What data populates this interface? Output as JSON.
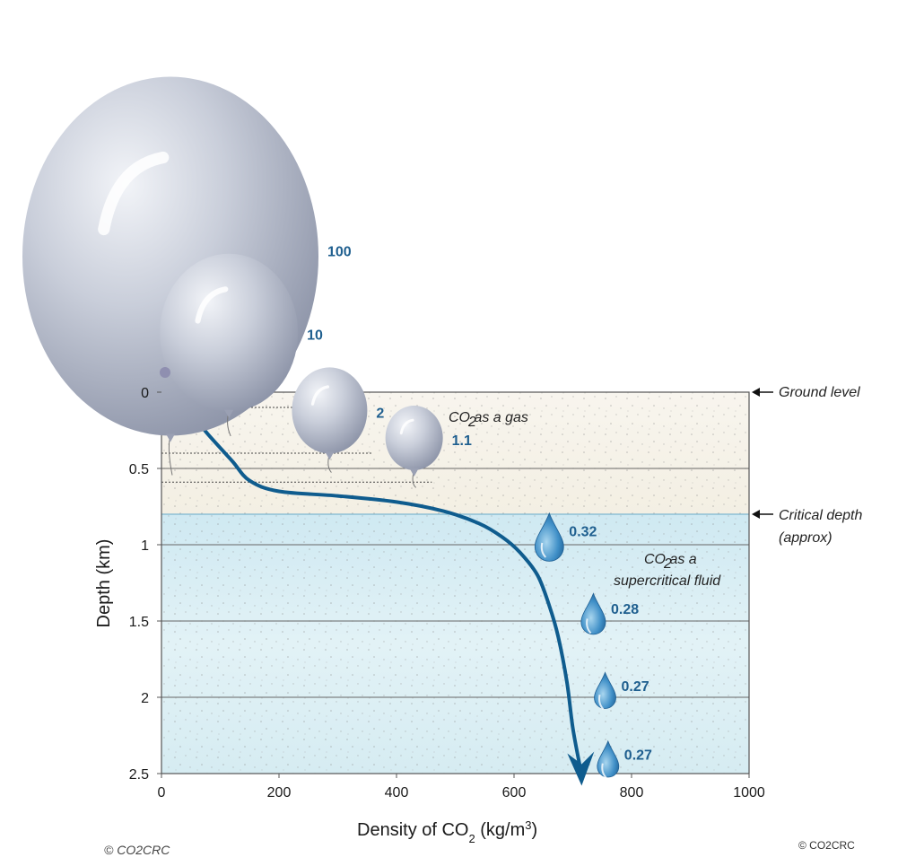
{
  "chart_data": {
    "type": "line",
    "xlabel": "Density of CO",
    "xlabel_sub": "2",
    "xlabel_unit": " (kg/m",
    "xlabel_sup": "3",
    "xlabel_end": ")",
    "ylabel": "Depth (km)",
    "xlim": [
      0,
      1000
    ],
    "ylim": [
      0,
      2.5
    ],
    "x_ticks": [
      0,
      200,
      400,
      600,
      800,
      1000
    ],
    "y_ticks": [
      0,
      0.5,
      1,
      1.5,
      2,
      2.5
    ],
    "series": [
      {
        "x": [
          0,
          40,
          80,
          120,
          150,
          200,
          300,
          400,
          480,
          540,
          580,
          610,
          640,
          660,
          675,
          690,
          700,
          712
        ],
        "y": [
          0,
          0.1,
          0.28,
          0.45,
          0.58,
          0.65,
          0.68,
          0.72,
          0.78,
          0.86,
          0.95,
          1.05,
          1.2,
          1.4,
          1.6,
          1.9,
          2.2,
          2.45
        ]
      }
    ],
    "critical_depth": 0.8,
    "ground_level": 0,
    "zones": {
      "gas": "CO as a gas",
      "supercritical_line1": "CO as a",
      "supercritical_line2": "supercritical fluid"
    },
    "gas_volumes": [
      {
        "label": "100",
        "depth": -0.95,
        "density": 0
      },
      {
        "label": "10",
        "depth": -0.39,
        "density": 130
      },
      {
        "label": "2",
        "depth": 0.12,
        "density": 280
      },
      {
        "label": "1.1",
        "depth": 0.3,
        "density": 430
      }
    ],
    "fluid_volumes": [
      {
        "label": "0.32",
        "depth": 0.97,
        "density": 660
      },
      {
        "label": "0.28",
        "depth": 1.47,
        "density": 735
      },
      {
        "label": "0.27",
        "depth": 1.97,
        "density": 755
      },
      {
        "label": "0.27",
        "depth": 2.42,
        "density": 760
      }
    ],
    "annotations": {
      "ground": "Ground level",
      "critical_line1": "Critical depth",
      "critical_line2": "(approx)"
    },
    "colors": {
      "curve": "#0f5c8e",
      "gas_zone": "#f7f3ea",
      "fluid_zone": "#d8eef5",
      "value_text": "#1f5f8f"
    }
  },
  "credits": {
    "left": "© CO2CRC",
    "right": "© CO2CRC"
  }
}
